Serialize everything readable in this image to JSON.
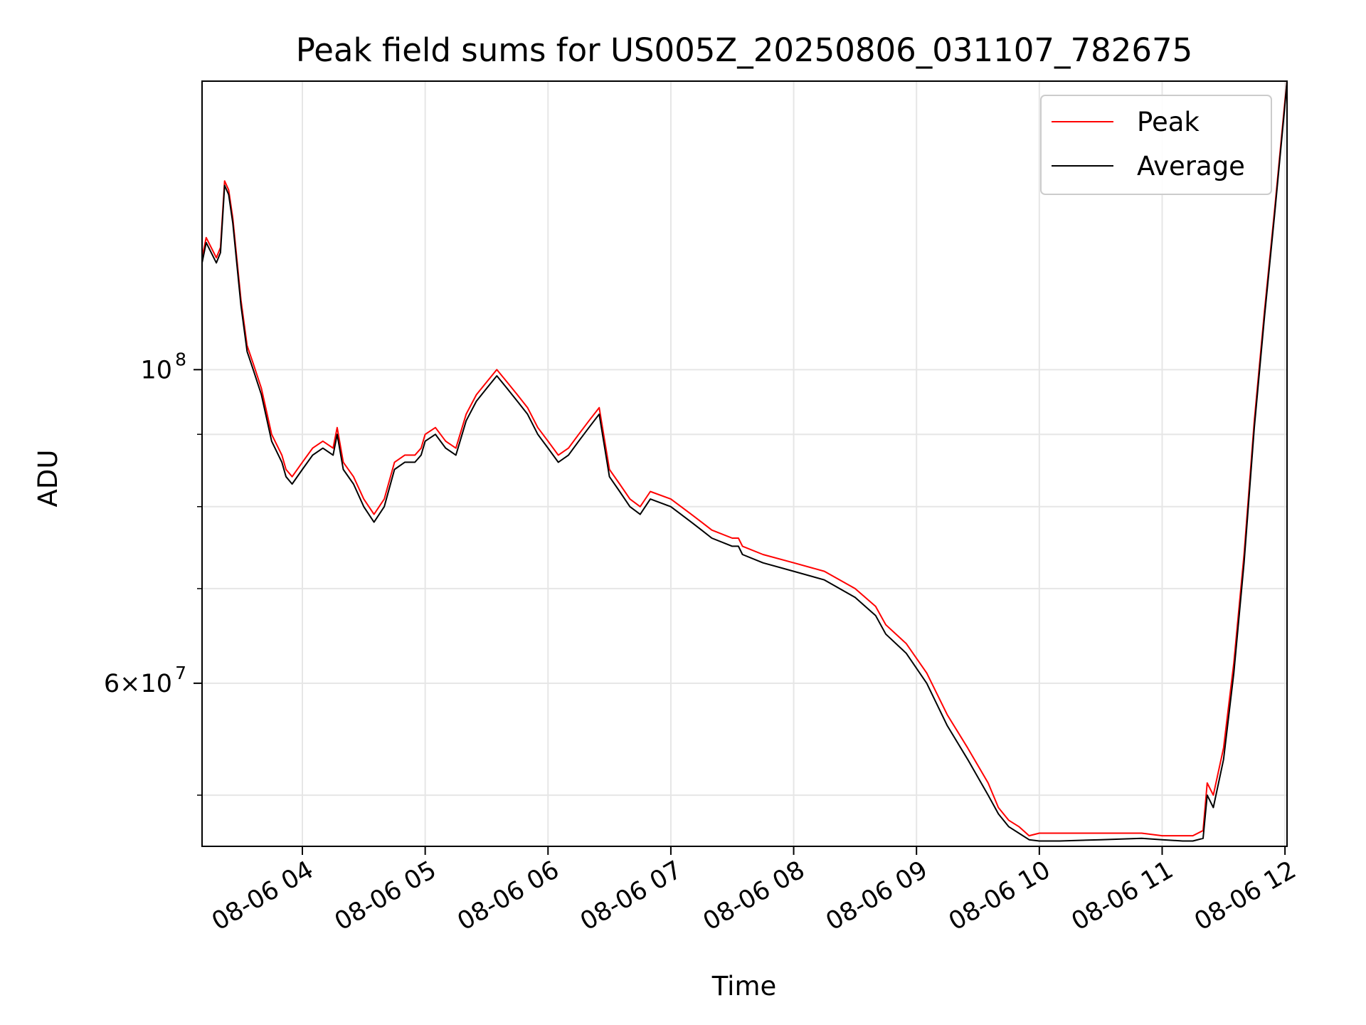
{
  "chart_data": {
    "type": "line",
    "title": "Peak field sums for US005Z_20250806_031107_782675",
    "xlabel": "Time",
    "ylabel": "ADU",
    "xlim": [
      "2025-08-06 03:11",
      "2025-08-06 12:01"
    ],
    "ylim": [
      46000000,
      160000000
    ],
    "yscale": "log",
    "grid": true,
    "legend_position": "upper right",
    "x_ticks": [
      "08-06 04",
      "08-06 05",
      "08-06 06",
      "08-06 07",
      "08-06 08",
      "08-06 09",
      "08-06 10",
      "08-06 11",
      "08-06 12"
    ],
    "y_tick_labels": [
      {
        "value": 100000000,
        "base": "10",
        "exp": "8"
      },
      {
        "value": 60000000,
        "base": "6×10",
        "exp": "7"
      }
    ],
    "y_minor_ticks": [
      50000000,
      70000000,
      80000000,
      90000000
    ],
    "x": [
      "03:11",
      "03:13",
      "03:18",
      "03:20",
      "03:22",
      "03:24",
      "03:26",
      "03:30",
      "03:33",
      "03:36",
      "03:40",
      "03:45",
      "03:50",
      "03:52",
      "03:55",
      "04:00",
      "04:05",
      "04:10",
      "04:15",
      "04:17",
      "04:20",
      "04:25",
      "04:30",
      "04:35",
      "04:40",
      "04:45",
      "04:50",
      "04:55",
      "04:58",
      "05:00",
      "05:05",
      "05:10",
      "05:15",
      "05:20",
      "05:25",
      "05:30",
      "05:35",
      "05:40",
      "05:45",
      "05:50",
      "05:55",
      "06:00",
      "06:05",
      "06:10",
      "06:15",
      "06:20",
      "06:25",
      "06:30",
      "06:35",
      "06:40",
      "06:45",
      "06:50",
      "07:00",
      "07:10",
      "07:15",
      "07:20",
      "07:30",
      "07:33",
      "07:35",
      "07:45",
      "08:00",
      "08:15",
      "08:30",
      "08:40",
      "08:45",
      "08:55",
      "09:05",
      "09:15",
      "09:25",
      "09:35",
      "09:40",
      "09:45",
      "09:50",
      "09:55",
      "10:00",
      "10:10",
      "10:30",
      "10:50",
      "11:00",
      "11:10",
      "11:15",
      "11:20",
      "11:22",
      "11:25",
      "11:30",
      "11:35",
      "11:40",
      "11:45",
      "11:50",
      "11:55",
      "12:00",
      "12:01"
    ],
    "series": [
      {
        "name": "Peak",
        "color": "#ff0000",
        "values": [
          120,
          124,
          120,
          122,
          136,
          134,
          128,
          112,
          104,
          101,
          97,
          90,
          87,
          85,
          84,
          86,
          88,
          89,
          88,
          91,
          86,
          84,
          81,
          79,
          81,
          86,
          87,
          87,
          88,
          90,
          91,
          89,
          88,
          93,
          96,
          98,
          100,
          98,
          96,
          94,
          91,
          89,
          87,
          88,
          90,
          92,
          94,
          85,
          83,
          81,
          80,
          82,
          81,
          79,
          78,
          77,
          76,
          76,
          75,
          74,
          73,
          72,
          70,
          68,
          66,
          64,
          61,
          57,
          54,
          51,
          49,
          48,
          47.5,
          46.8,
          47,
          47,
          47,
          47,
          46.8,
          46.8,
          46.8,
          47.2,
          51,
          50,
          54,
          62,
          74,
          92,
          110,
          130,
          155,
          160
        ],
        "scale": 1000000
      },
      {
        "name": "Average",
        "color": "#000000",
        "values": [
          119,
          123,
          119,
          121,
          135,
          133,
          127,
          111,
          103,
          100,
          96,
          89,
          86,
          84,
          83,
          85,
          87,
          88,
          87,
          90,
          85,
          83,
          80,
          78,
          80,
          85,
          86,
          86,
          87,
          89,
          90,
          88,
          87,
          92,
          95,
          97,
          99,
          97,
          95,
          93,
          90,
          88,
          86,
          87,
          89,
          91,
          93,
          84,
          82,
          80,
          79,
          81,
          80,
          78,
          77,
          76,
          75,
          75,
          74,
          73,
          72,
          71,
          69,
          67,
          65,
          63,
          60,
          56,
          53,
          50,
          48.5,
          47.5,
          47,
          46.5,
          46.4,
          46.4,
          46.5,
          46.6,
          46.5,
          46.4,
          46.4,
          46.6,
          50,
          49,
          53,
          61,
          73,
          91,
          109,
          129,
          154,
          160
        ],
        "scale": 1000000
      }
    ]
  }
}
